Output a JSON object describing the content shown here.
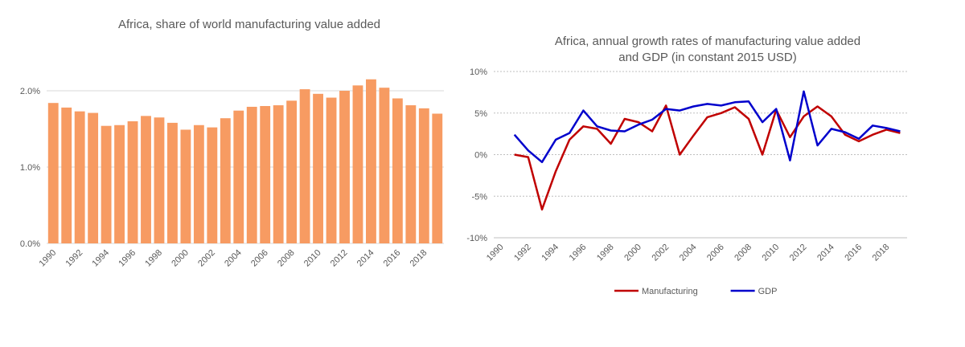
{
  "chart_data": [
    {
      "type": "bar",
      "title": "Africa, share of world manufacturing value added",
      "categories": [
        "1990",
        "1991",
        "1992",
        "1993",
        "1994",
        "1995",
        "1996",
        "1997",
        "1998",
        "1999",
        "2000",
        "2001",
        "2002",
        "2003",
        "2004",
        "2005",
        "2006",
        "2007",
        "2008",
        "2009",
        "2010",
        "2011",
        "2012",
        "2013",
        "2014",
        "2015",
        "2016",
        "2017",
        "2018",
        "2019"
      ],
      "xtick_labels": [
        "1990",
        "1992",
        "1994",
        "1996",
        "1998",
        "2000",
        "2002",
        "2004",
        "2006",
        "2008",
        "2010",
        "2012",
        "2014",
        "2016",
        "2018"
      ],
      "values": [
        1.84,
        1.78,
        1.73,
        1.71,
        1.54,
        1.55,
        1.6,
        1.67,
        1.65,
        1.58,
        1.49,
        1.55,
        1.52,
        1.64,
        1.74,
        1.79,
        1.8,
        1.81,
        1.87,
        2.02,
        1.96,
        1.91,
        2.0,
        2.07,
        2.15,
        2.04,
        1.9,
        1.81,
        1.77,
        1.7
      ],
      "yticks": [
        "0.0%",
        "1.0%",
        "2.0%"
      ],
      "ylim": [
        0,
        2.2
      ],
      "bar_color": "#F79B62",
      "grid": true
    },
    {
      "type": "line",
      "title_line1": "Africa, annual growth rates of manufacturing value added",
      "title_line2": "and GDP (in constant 2015 USD)",
      "x": [
        "1990",
        "1991",
        "1992",
        "1993",
        "1994",
        "1995",
        "1996",
        "1997",
        "1998",
        "1999",
        "2000",
        "2001",
        "2002",
        "2003",
        "2004",
        "2005",
        "2006",
        "2007",
        "2008",
        "2009",
        "2010",
        "2011",
        "2012",
        "2013",
        "2014",
        "2015",
        "2016",
        "2017",
        "2018",
        "2019"
      ],
      "xtick_labels": [
        "1990",
        "1992",
        "1994",
        "1996",
        "1998",
        "2000",
        "2002",
        "2004",
        "2006",
        "2008",
        "2010",
        "2012",
        "2014",
        "2016",
        "2018"
      ],
      "series": [
        {
          "name": "Manufacturing",
          "color": "#C00000",
          "values": [
            null,
            0.0,
            -0.3,
            -6.6,
            -2.0,
            1.8,
            3.4,
            3.1,
            1.3,
            4.3,
            3.9,
            2.8,
            5.9,
            0.0,
            2.3,
            4.5,
            5.0,
            5.7,
            4.3,
            0.0,
            5.4,
            2.1,
            4.6,
            5.8,
            4.6,
            2.4,
            1.6,
            2.4,
            3.0,
            2.6
          ]
        },
        {
          "name": "GDP",
          "color": "#0000CC",
          "values": [
            null,
            2.4,
            0.5,
            -0.9,
            1.8,
            2.6,
            5.3,
            3.4,
            2.9,
            2.8,
            3.6,
            4.2,
            5.5,
            5.3,
            5.8,
            6.1,
            5.9,
            6.3,
            6.4,
            3.9,
            5.5,
            -0.7,
            7.6,
            1.1,
            3.1,
            2.7,
            1.9,
            3.5,
            3.2,
            2.8
          ]
        }
      ],
      "yticks": [
        "10%",
        "5%",
        "0%",
        "-5%",
        "-10%"
      ],
      "ylim": [
        -10,
        10
      ],
      "legend_position": "bottom",
      "grid": true
    }
  ]
}
